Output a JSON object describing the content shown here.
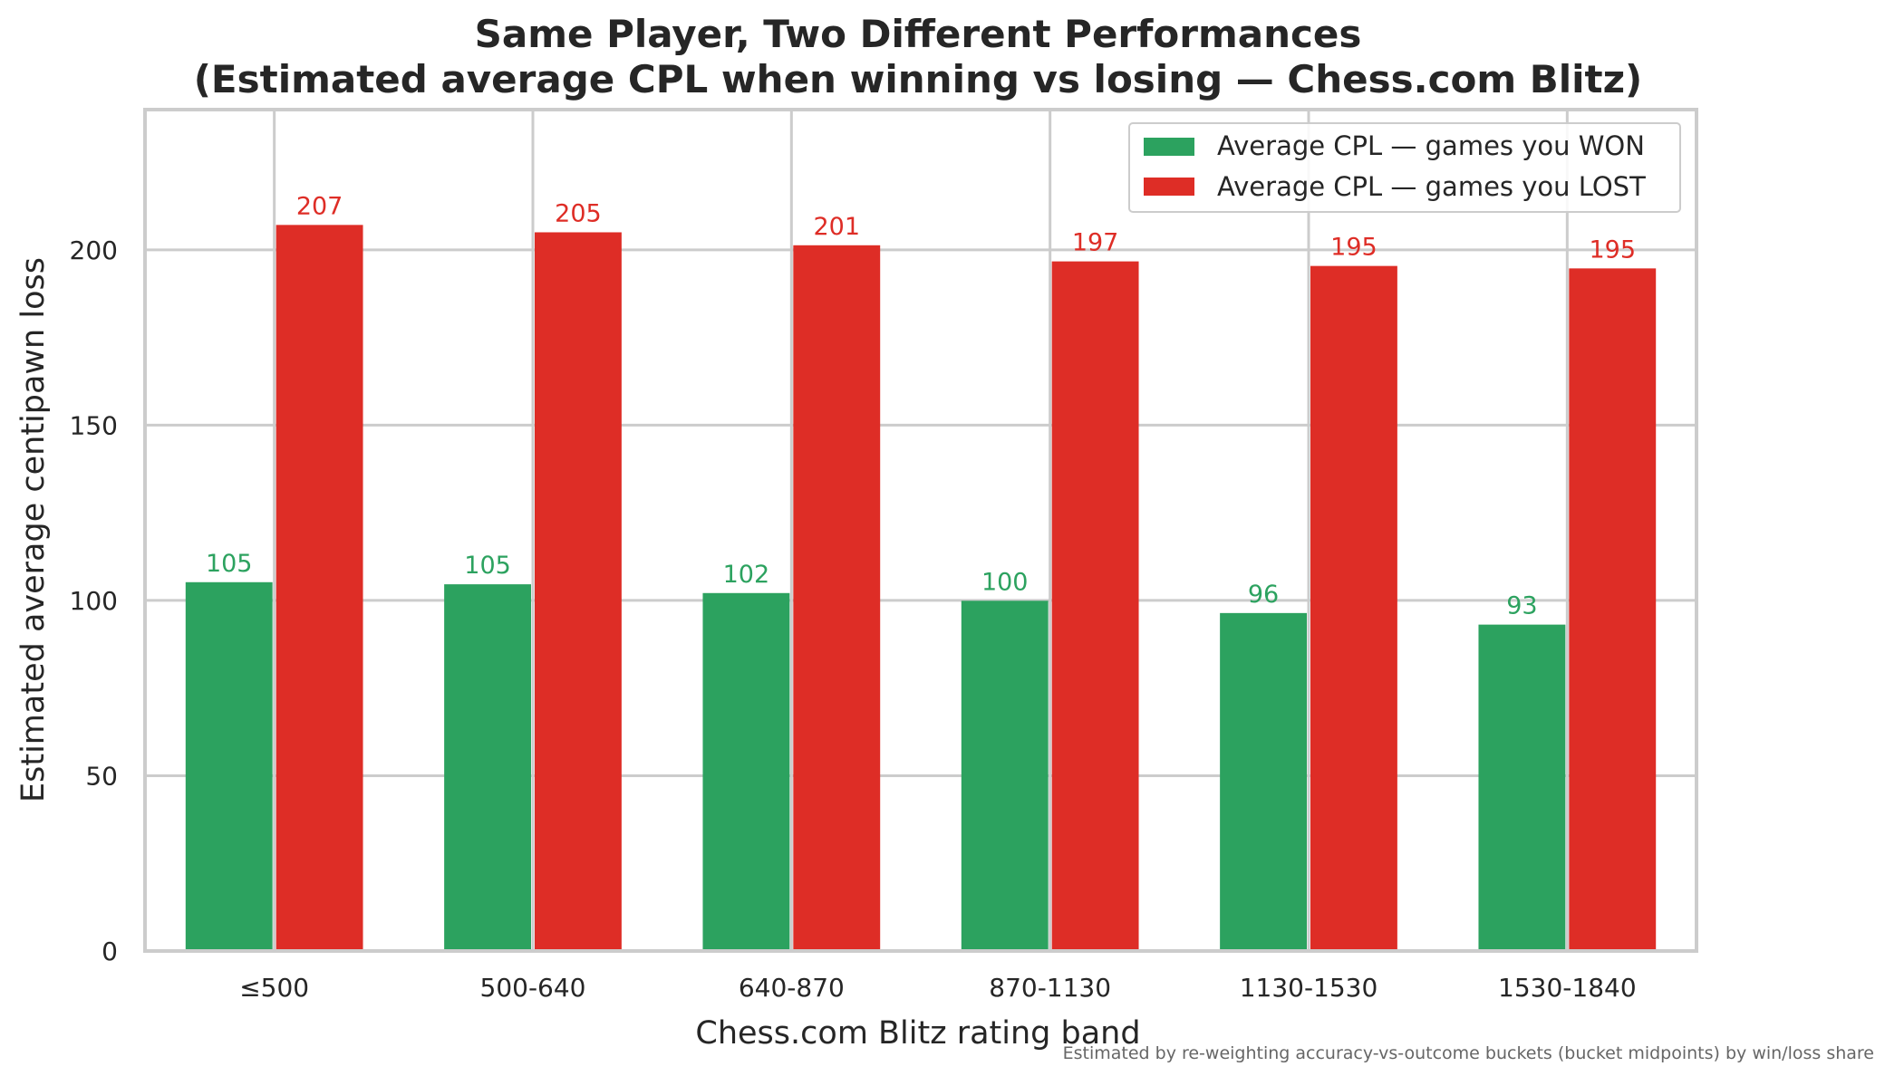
{
  "chart_data": {
    "type": "bar",
    "title_line1": "Same Player, Two Different Performances",
    "title_line2": "(Estimated average CPL when winning vs losing — Chess.com Blitz)",
    "xlabel": "Chess.com Blitz rating band",
    "ylabel": "Estimated average centipawn loss",
    "footnote": "Estimated by re-weighting accuracy-vs-outcome buckets (bucket midpoints) by win/loss share",
    "categories": [
      "≤500",
      "500-640",
      "640-870",
      "870-1130",
      "1130-1530",
      "1530-1840"
    ],
    "series": [
      {
        "name": "Average CPL — games you WON",
        "color": "#2ca25f",
        "values": [
          105.2,
          104.6,
          102.1,
          99.9,
          96.4,
          93.1
        ],
        "labels": [
          "105",
          "105",
          "102",
          "100",
          "96",
          "93"
        ]
      },
      {
        "name": "Average CPL — games you LOST",
        "color": "#de2d26",
        "values": [
          207.1,
          205.0,
          201.3,
          196.7,
          195.4,
          194.7
        ],
        "labels": [
          "207",
          "205",
          "201",
          "197",
          "195",
          "195"
        ]
      }
    ],
    "ylim": [
      0,
      240
    ],
    "yticks": [
      0,
      50,
      100,
      150,
      200
    ],
    "grid": true,
    "legend_position": "top-right"
  }
}
